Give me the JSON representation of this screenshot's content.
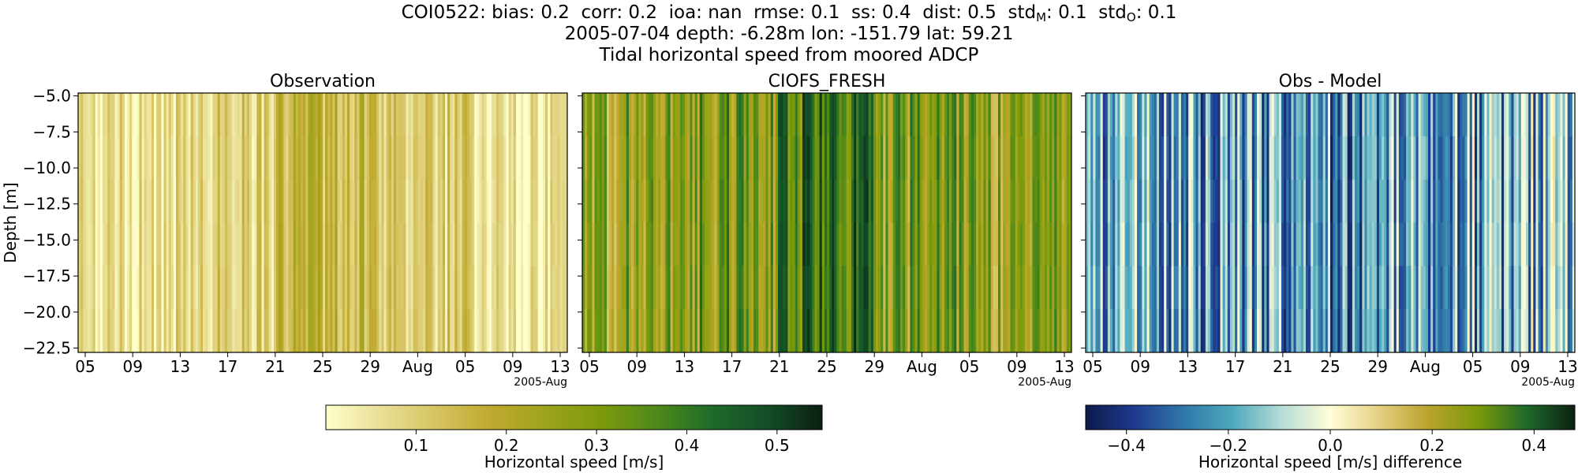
{
  "header": {
    "station": "COI0522",
    "metrics": [
      {
        "label": "bias",
        "value": "0.2"
      },
      {
        "label": "corr",
        "value": "0.2"
      },
      {
        "label": "ioa",
        "value": "nan"
      },
      {
        "label": "rmse",
        "value": "0.1"
      },
      {
        "label": "ss",
        "value": "0.4"
      },
      {
        "label": "dist",
        "value": "0.5"
      },
      {
        "label": "std",
        "sub": "M",
        "value": "0.1"
      },
      {
        "label": "std",
        "sub": "O",
        "value": "0.1"
      }
    ],
    "line2": "2005-07-04 depth: -6.28m lon: -151.79 lat: 59.21",
    "line3": "Tidal horizontal speed from moored ADCP"
  },
  "colors": {
    "speed_scale": [
      "#ffffcc",
      "#e9df96",
      "#d6c461",
      "#bfa92f",
      "#9da31a",
      "#7c9a0b",
      "#4e8a1a",
      "#1f6b2a",
      "#144d26",
      "#0b1f12"
    ],
    "diff_scale": [
      "#0d1a4a",
      "#1f3a8f",
      "#2f78a8",
      "#4ea9bd",
      "#b5dcd6",
      "#fffed8",
      "#e6cf82",
      "#b9a32c",
      "#7c9a0b",
      "#1f6b2a",
      "#0b1f12"
    ]
  },
  "chart_data": [
    {
      "type": "heatmap",
      "title": "Observation",
      "ylabel": "Depth [m]",
      "xlabel": "",
      "x_ticks": [
        "05",
        "09",
        "13",
        "17",
        "21",
        "25",
        "29",
        "Aug",
        "05",
        "09",
        "13"
      ],
      "x_offset_label": "2005-Aug",
      "y_ticks": [
        "-5.0",
        "-7.5",
        "-10.0",
        "-12.5",
        "-15.0",
        "-17.5",
        "-20.0",
        "-22.5"
      ],
      "ylim": [
        -22.8,
        -4.8
      ],
      "value_range": [
        0.0,
        0.55
      ],
      "pattern_mean": [
        0.06,
        0.1,
        0.16,
        0.1,
        0.05
      ]
    },
    {
      "type": "heatmap",
      "title": "CIOFS_FRESH",
      "x_ticks": [
        "05",
        "09",
        "13",
        "17",
        "21",
        "25",
        "29",
        "Aug",
        "05",
        "09",
        "13"
      ],
      "x_offset_label": "2005-Aug",
      "y_ticks": [
        "-5.0",
        "-7.5",
        "-10.0",
        "-12.5",
        "-15.0",
        "-17.5",
        "-20.0",
        "-22.5"
      ],
      "ylim": [
        -22.8,
        -4.8
      ],
      "value_range": [
        0.0,
        0.55
      ],
      "pattern_mean": [
        0.26,
        0.3,
        0.38,
        0.28,
        0.24
      ]
    },
    {
      "type": "heatmap",
      "title": "Obs - Model",
      "x_ticks": [
        "05",
        "09",
        "13",
        "17",
        "21",
        "25",
        "29",
        "Aug",
        "05",
        "09",
        "13"
      ],
      "x_offset_label": "2005-Aug",
      "y_ticks": [
        "-5.0",
        "-7.5",
        "-10.0",
        "-12.5",
        "-15.0",
        "-17.5",
        "-20.0",
        "-22.5"
      ],
      "ylim": [
        -22.8,
        -4.8
      ],
      "value_range": [
        -0.48,
        0.48
      ],
      "pattern_mean": [
        -0.2,
        -0.22,
        -0.25,
        -0.2,
        -0.18
      ]
    }
  ],
  "colorbars": [
    {
      "label": "Horizontal speed [m/s]",
      "ticks": [
        "0.1",
        "0.2",
        "0.3",
        "0.4",
        "0.5"
      ],
      "tick_values": [
        0.1,
        0.2,
        0.3,
        0.4,
        0.5
      ],
      "range": [
        0.0,
        0.55
      ]
    },
    {
      "label": "Horizontal speed [m/s] difference",
      "ticks": [
        "−0.4",
        "−0.2",
        "0.0",
        "0.2",
        "0.4"
      ],
      "tick_values": [
        -0.4,
        -0.2,
        0.0,
        0.2,
        0.4
      ],
      "range": [
        -0.48,
        0.48
      ]
    }
  ]
}
